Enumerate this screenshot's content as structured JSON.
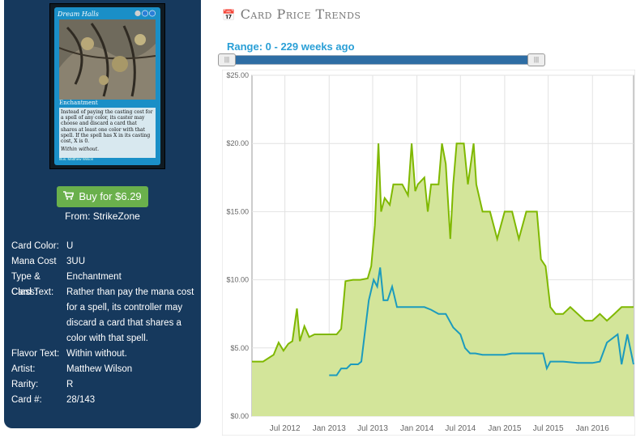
{
  "sidebar": {
    "card": {
      "name": "Dream Halls",
      "cost": "3UU",
      "type_line": "Enchantment",
      "rules_text": "Instead of paying the casting cost for a spell of any color, its caster may choose and discard a card that shares at least one color with that spell. If the spell has X in its casting cost, X is 0.",
      "flavor": "Within without.",
      "artist_line": "Illus. Matthew Wilson"
    },
    "buy_label": "Buy for $6.29",
    "from_label": "From: StrikeZone",
    "info": [
      {
        "label": "Card Color:",
        "value": "U"
      },
      {
        "label": "Mana Cost",
        "value": "3UU"
      },
      {
        "label": "Type & Class:",
        "value": "Enchantment"
      },
      {
        "label": "Card Text:",
        "value": "Rather than pay the mana cost for a spell, its controller may discard a card that shares a color with that spell."
      },
      {
        "label": "Flavor Text:",
        "value": "Within without."
      },
      {
        "label": "Artist:",
        "value": "Matthew Wilson"
      },
      {
        "label": "Rarity:",
        "value": "R"
      },
      {
        "label": "Card #:",
        "value": "28/143"
      }
    ]
  },
  "chart_header": {
    "title": "Card Price Trends",
    "icon": "calendar-icon",
    "range_label": "Range: 0 - 229 weeks ago",
    "slider_range": [
      0,
      229
    ]
  },
  "colors": {
    "sidebar_bg": "#16395d",
    "buy_button": "#6ab04c",
    "high_line": "#7fb800",
    "high_fill": "#d3e59a",
    "low_line": "#1c9bbd",
    "accent": "#2a9fd6"
  },
  "chart_data": {
    "type": "area",
    "title": "",
    "xlabel": "",
    "ylabel": "",
    "ylim": [
      0,
      25
    ],
    "y_ticks": [
      "$0.00",
      "$5.00",
      "$10.00",
      "$15.00",
      "$20.00",
      "$25.00"
    ],
    "x_ticks": [
      "Jul 2012",
      "Jan 2013",
      "Jul 2013",
      "Jan 2014",
      "Jul 2014",
      "Jan 2015",
      "Jul 2015",
      "Jan 2016"
    ],
    "xlim": [
      "2012-02-15",
      "2016-06-20"
    ],
    "grid": true,
    "series": [
      {
        "name": "",
        "style": "area",
        "points": [
          [
            "2012-02-15",
            4.0
          ],
          [
            "2012-04-01",
            4.0
          ],
          [
            "2012-05-15",
            4.5
          ],
          [
            "2012-06-05",
            5.4
          ],
          [
            "2012-06-25",
            4.8
          ],
          [
            "2012-07-15",
            5.3
          ],
          [
            "2012-08-01",
            5.5
          ],
          [
            "2012-08-20",
            7.9
          ],
          [
            "2012-09-01",
            5.5
          ],
          [
            "2012-09-20",
            6.6
          ],
          [
            "2012-10-10",
            5.8
          ],
          [
            "2012-11-01",
            6.0
          ],
          [
            "2012-12-01",
            6.0
          ],
          [
            "2013-01-01",
            6.0
          ],
          [
            "2013-02-01",
            6.0
          ],
          [
            "2013-02-20",
            6.4
          ],
          [
            "2013-03-10",
            9.9
          ],
          [
            "2013-04-10",
            10.0
          ],
          [
            "2013-05-10",
            10.0
          ],
          [
            "2013-06-10",
            10.1
          ],
          [
            "2013-06-25",
            11.0
          ],
          [
            "2013-07-10",
            14.0
          ],
          [
            "2013-07-25",
            20.0
          ],
          [
            "2013-08-05",
            15.0
          ],
          [
            "2013-08-20",
            16.0
          ],
          [
            "2013-09-10",
            15.5
          ],
          [
            "2013-09-25",
            17.0
          ],
          [
            "2013-11-01",
            17.0
          ],
          [
            "2013-11-25",
            16.2
          ],
          [
            "2013-12-10",
            20.0
          ],
          [
            "2013-12-25",
            16.5
          ],
          [
            "2014-01-05",
            17.0
          ],
          [
            "2014-02-01",
            17.5
          ],
          [
            "2014-02-15",
            15.0
          ],
          [
            "2014-03-01",
            17.0
          ],
          [
            "2014-04-01",
            17.0
          ],
          [
            "2014-04-15",
            20.0
          ],
          [
            "2014-05-01",
            18.5
          ],
          [
            "2014-05-20",
            13.0
          ],
          [
            "2014-06-01",
            17.0
          ],
          [
            "2014-06-15",
            20.0
          ],
          [
            "2014-07-15",
            20.0
          ],
          [
            "2014-08-01",
            17.0
          ],
          [
            "2014-08-25",
            20.0
          ],
          [
            "2014-09-05",
            17.0
          ],
          [
            "2014-10-01",
            15.0
          ],
          [
            "2014-11-01",
            15.0
          ],
          [
            "2014-12-01",
            13.0
          ],
          [
            "2015-01-01",
            15.0
          ],
          [
            "2015-02-01",
            15.0
          ],
          [
            "2015-03-01",
            13.0
          ],
          [
            "2015-04-01",
            15.0
          ],
          [
            "2015-05-15",
            15.0
          ],
          [
            "2015-06-01",
            11.5
          ],
          [
            "2015-06-20",
            11.0
          ],
          [
            "2015-07-10",
            8.0
          ],
          [
            "2015-08-01",
            7.5
          ],
          [
            "2015-09-01",
            7.5
          ],
          [
            "2015-10-01",
            8.0
          ],
          [
            "2015-11-01",
            7.5
          ],
          [
            "2015-12-01",
            7.0
          ],
          [
            "2016-01-01",
            7.0
          ],
          [
            "2016-02-01",
            7.5
          ],
          [
            "2016-03-01",
            7.0
          ],
          [
            "2016-04-01",
            7.5
          ],
          [
            "2016-05-01",
            8.0
          ],
          [
            "2016-06-20",
            8.0
          ]
        ]
      },
      {
        "name": "",
        "style": "line",
        "points": [
          [
            "2013-01-01",
            3.0
          ],
          [
            "2013-02-01",
            3.0
          ],
          [
            "2013-02-20",
            3.5
          ],
          [
            "2013-03-15",
            3.5
          ],
          [
            "2013-04-01",
            3.8
          ],
          [
            "2013-05-01",
            3.8
          ],
          [
            "2013-05-15",
            4.0
          ],
          [
            "2013-06-01",
            6.5
          ],
          [
            "2013-06-15",
            8.5
          ],
          [
            "2013-07-05",
            10.0
          ],
          [
            "2013-07-20",
            9.5
          ],
          [
            "2013-08-01",
            10.9
          ],
          [
            "2013-08-15",
            8.5
          ],
          [
            "2013-09-01",
            8.5
          ],
          [
            "2013-09-20",
            9.5
          ],
          [
            "2013-10-10",
            8.0
          ],
          [
            "2013-11-01",
            8.0
          ],
          [
            "2013-12-01",
            8.0
          ],
          [
            "2014-01-01",
            8.0
          ],
          [
            "2014-02-01",
            8.0
          ],
          [
            "2014-03-01",
            7.8
          ],
          [
            "2014-04-01",
            7.5
          ],
          [
            "2014-05-01",
            7.5
          ],
          [
            "2014-06-01",
            6.5
          ],
          [
            "2014-07-01",
            6.0
          ],
          [
            "2014-07-20",
            5.0
          ],
          [
            "2014-08-10",
            4.6
          ],
          [
            "2014-09-01",
            4.6
          ],
          [
            "2014-10-01",
            4.5
          ],
          [
            "2014-11-01",
            4.5
          ],
          [
            "2014-12-01",
            4.5
          ],
          [
            "2015-01-01",
            4.5
          ],
          [
            "2015-02-01",
            4.6
          ],
          [
            "2015-03-01",
            4.6
          ],
          [
            "2015-04-01",
            4.6
          ],
          [
            "2015-05-01",
            4.6
          ],
          [
            "2015-06-10",
            4.6
          ],
          [
            "2015-06-25",
            3.5
          ],
          [
            "2015-07-10",
            4.0
          ],
          [
            "2015-09-01",
            4.0
          ],
          [
            "2015-11-01",
            3.9
          ],
          [
            "2016-01-01",
            3.9
          ],
          [
            "2016-02-01",
            4.0
          ],
          [
            "2016-03-01",
            5.4
          ],
          [
            "2016-04-15",
            6.0
          ],
          [
            "2016-05-01",
            3.8
          ],
          [
            "2016-05-25",
            6.0
          ],
          [
            "2016-06-20",
            3.8
          ]
        ]
      }
    ]
  }
}
